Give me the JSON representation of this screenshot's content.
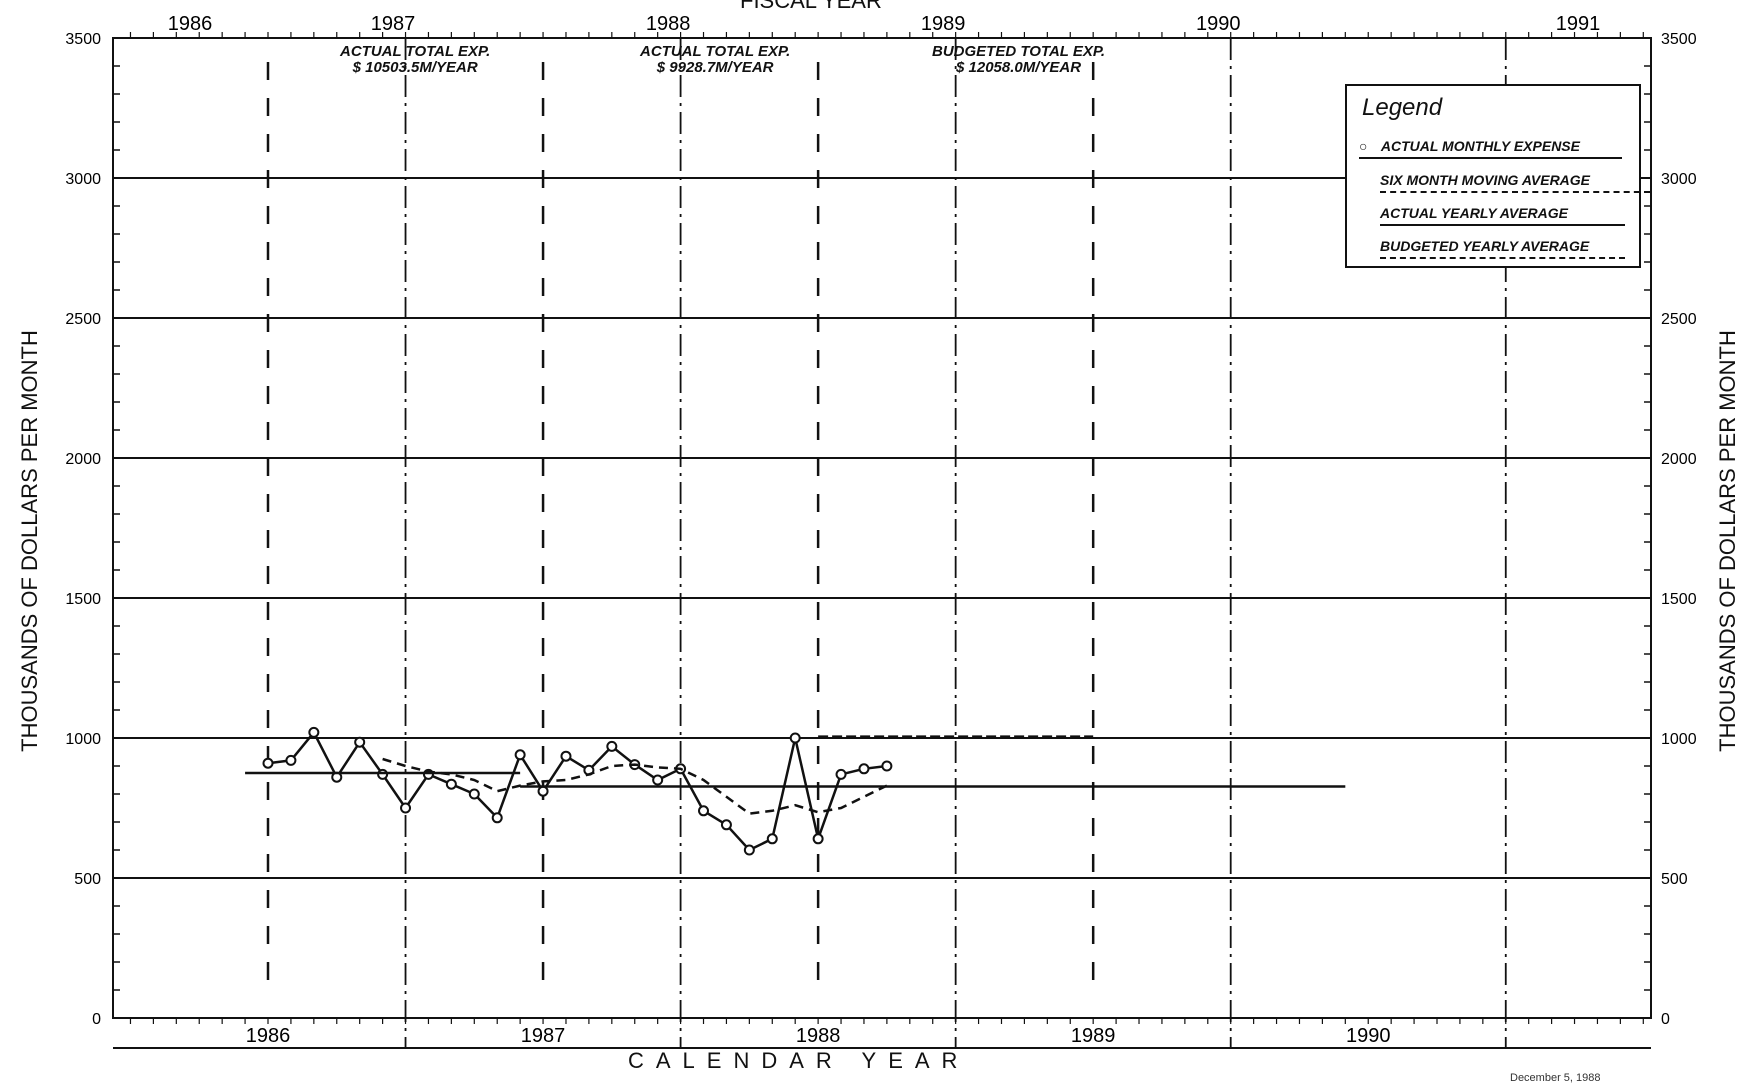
{
  "chart_data": {
    "type": "line",
    "title": "FISCAL YEAR",
    "xlabel": "CALENDAR YEAR",
    "ylabel": "THOUSANDS OF DOLLARS PER MONTH",
    "ylabel_right": "THOUSANDS OF DOLLARS PER MONTH",
    "ylim": [
      0,
      3500
    ],
    "yticks": [
      0,
      500,
      1000,
      1500,
      2000,
      2500,
      3000,
      3500
    ],
    "x_calendar_ticks": [
      "1986",
      "1987",
      "1988",
      "1989",
      "1990"
    ],
    "x_fiscal_ticks": [
      "1986",
      "1987",
      "1988",
      "1989",
      "1990",
      "1991"
    ],
    "annotations": [
      {
        "text_line1": "ACTUAL TOTAL EXP.",
        "text_line2": "$ 10503.5M/YEAR"
      },
      {
        "text_line1": "ACTUAL TOTAL EXP.",
        "text_line2": "$ 9928.7M/YEAR"
      },
      {
        "text_line1": "BUDGETED TOTAL EXP.",
        "text_line2": "$ 12058.0M/YEAR"
      }
    ],
    "legend": {
      "title": "Legend",
      "placement": "top-right",
      "entries": [
        "ACTUAL MONTHLY EXPENSE",
        "SIX MONTH MOVING AVERAGE",
        "ACTUAL YEARLY AVERAGE",
        "BUDGETED YEARLY AVERAGE"
      ]
    },
    "series": [
      {
        "name": "ACTUAL MONTHLY EXPENSE",
        "style": "solid-markers",
        "x": [
          "1986-01",
          "1986-02",
          "1986-03",
          "1986-04",
          "1986-05",
          "1986-06",
          "1986-07",
          "1986-08",
          "1986-09",
          "1986-10",
          "1986-11",
          "1986-12",
          "1987-01",
          "1987-02",
          "1987-03",
          "1987-04",
          "1987-05",
          "1987-06",
          "1987-07",
          "1987-08",
          "1987-09",
          "1987-10",
          "1987-11",
          "1987-12",
          "1988-01",
          "1988-02",
          "1988-03",
          "1988-04",
          "1988-05"
        ],
        "values": [
          910,
          920,
          1020,
          860,
          985,
          870,
          750,
          870,
          835,
          800,
          715,
          940,
          810,
          935,
          885,
          970,
          905,
          850,
          890,
          740,
          690,
          600,
          640,
          1000,
          640,
          870,
          890,
          900,
          null
        ]
      },
      {
        "name": "SIX MONTH MOVING AVERAGE",
        "style": "dashed",
        "x": [
          "1986-06",
          "1986-07",
          "1986-08",
          "1986-09",
          "1986-10",
          "1986-11",
          "1986-12",
          "1987-01",
          "1987-02",
          "1987-03",
          "1987-04",
          "1987-05",
          "1987-06",
          "1987-07",
          "1987-08",
          "1987-09",
          "1987-10",
          "1987-11",
          "1987-12",
          "1988-01",
          "1988-02",
          "1988-03",
          "1988-04"
        ],
        "values": [
          925,
          900,
          880,
          870,
          850,
          810,
          830,
          845,
          850,
          870,
          900,
          905,
          895,
          890,
          850,
          790,
          730,
          740,
          760,
          735,
          750,
          790,
          830
        ]
      },
      {
        "name": "ACTUAL YEARLY AVERAGE",
        "style": "solid",
        "segments": [
          {
            "x_start": "1985-12",
            "x_end": "1986-12",
            "value": 875
          },
          {
            "x_start": "1986-12",
            "x_end": "1989-12",
            "value": 827
          }
        ]
      },
      {
        "name": "BUDGETED YEARLY AVERAGE",
        "style": "dashed",
        "segments": [
          {
            "x_start": "1988-01",
            "x_end": "1989-01",
            "value": 1005
          }
        ]
      }
    ],
    "grid": true,
    "footnote": "December 5, 1988"
  }
}
